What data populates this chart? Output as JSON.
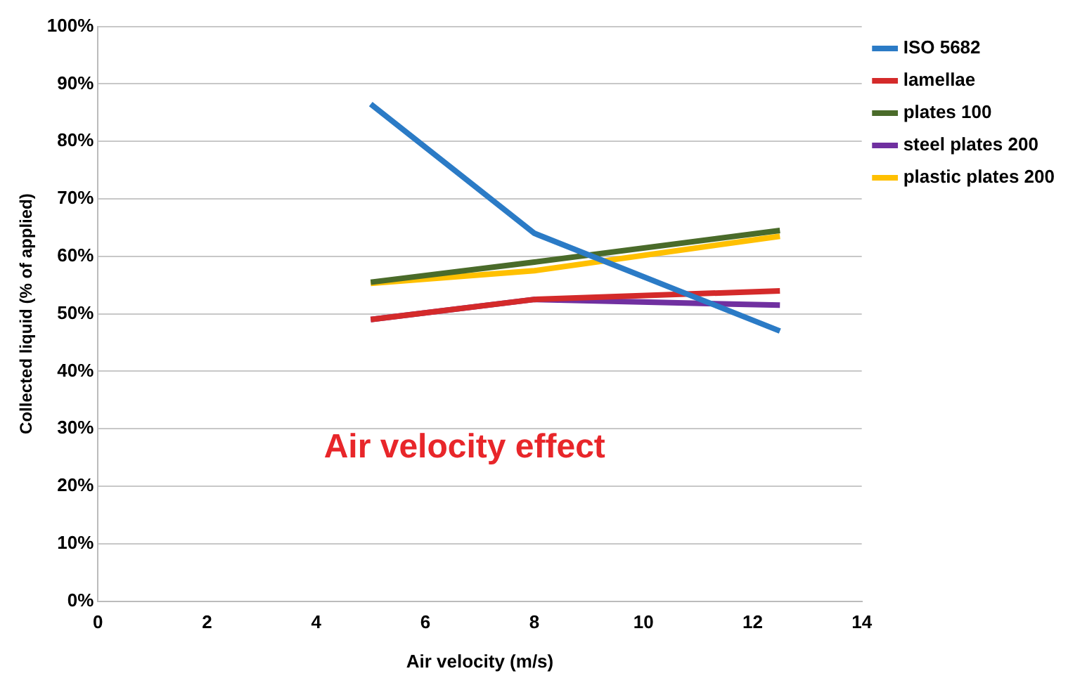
{
  "chart_data": {
    "type": "line",
    "xlabel": "Air velocity (m/s)",
    "ylabel": "Collected liquid (% of applied)",
    "x": [
      5,
      8,
      12.5
    ],
    "series": [
      {
        "name": "ISO 5682",
        "color": "#2b7bc6",
        "values": [
          86.5,
          64,
          47
        ]
      },
      {
        "name": "lamellae",
        "color": "#d42a2a",
        "values": [
          49,
          52.5,
          54
        ]
      },
      {
        "name": "plates 100",
        "color": "#4a6b2a",
        "values": [
          55.5,
          59,
          64.5
        ]
      },
      {
        "name": "steel plates 200",
        "color": "#7030a0",
        "values": [
          49,
          52.5,
          51.5
        ]
      },
      {
        "name": "plastic plates 200",
        "color": "#ffc000",
        "values": [
          55.3,
          57.5,
          63.5
        ]
      }
    ],
    "xlim": [
      0,
      14
    ],
    "xticks": [
      0,
      2,
      4,
      6,
      8,
      10,
      12,
      14
    ],
    "ylim": [
      0,
      100
    ],
    "yticks": [
      {
        "value": 0,
        "label": "0%"
      },
      {
        "value": 10,
        "label": "10%"
      },
      {
        "value": 20,
        "label": "20%"
      },
      {
        "value": 30,
        "label": "30%"
      },
      {
        "value": 40,
        "label": "40%"
      },
      {
        "value": 50,
        "label": "50%"
      },
      {
        "value": 60,
        "label": "60%"
      },
      {
        "value": 70,
        "label": "70%"
      },
      {
        "value": 80,
        "label": "80%"
      },
      {
        "value": 90,
        "label": "90%"
      },
      {
        "value": 100,
        "label": "100%"
      }
    ],
    "grid": "y",
    "legend": "top right",
    "marker": "none",
    "line_style": "solid",
    "annotations": [
      "Air velocity effect"
    ]
  }
}
